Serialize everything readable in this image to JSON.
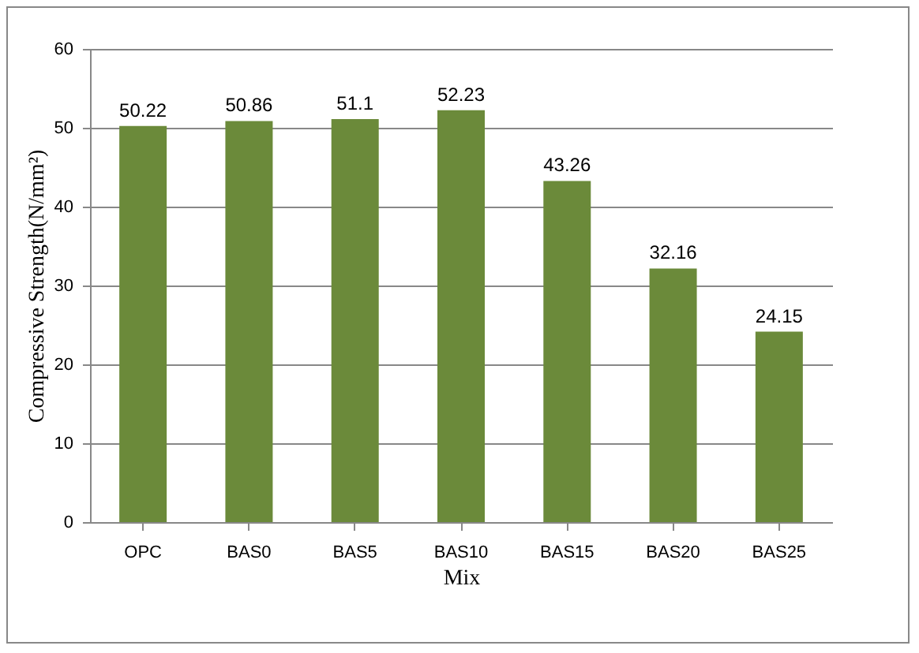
{
  "chart_data": {
    "type": "bar",
    "xlabel": "Mix",
    "ylabel": "Compressive Strength(N/mm²)",
    "categories": [
      "OPC",
      "BAS0",
      "BAS5",
      "BAS10",
      "BAS15",
      "BAS20",
      "BAS25"
    ],
    "values": [
      50.22,
      50.86,
      51.1,
      52.23,
      43.26,
      32.16,
      24.15
    ],
    "color": "#6b8a3a",
    "ylim": [
      0,
      60
    ],
    "yticks": [
      0,
      10,
      20,
      30,
      40,
      50,
      60
    ],
    "grid": "y",
    "data_labels": true
  }
}
